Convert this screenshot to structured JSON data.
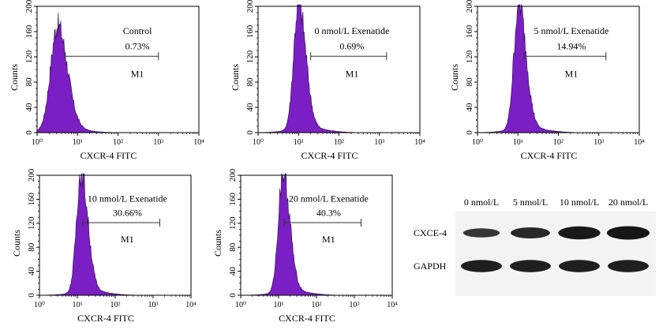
{
  "chart_data": [
    {
      "type": "histogram",
      "panel_label": "Control",
      "percent": "0.73%",
      "gate": "M1",
      "xlabel": "CXCR-4 FITC",
      "ylabel": "Counts",
      "x_scale": "log",
      "xlim": [
        1,
        10000
      ],
      "ylim": [
        0,
        200
      ],
      "x_ticks": [
        "10⁰",
        "10¹",
        "10²",
        "10³",
        "10⁴"
      ],
      "y_ticks": [
        "0",
        "40",
        "80",
        "120",
        "160",
        "200"
      ],
      "gate_range": [
        5,
        1000
      ],
      "peak_x": 3.2,
      "peak_count": 165,
      "fill_color": "#7a1fc4"
    },
    {
      "type": "histogram",
      "panel_label": "0 nmol/L  Exenatide",
      "percent": "0.69%",
      "gate": "M1",
      "xlabel": "CXCR-4 FITC",
      "ylabel": "Counts",
      "x_scale": "log",
      "xlim": [
        1,
        10000
      ],
      "ylim": [
        0,
        200
      ],
      "x_ticks": [
        "10⁰",
        "10¹",
        "10²",
        "10³",
        "10⁴"
      ],
      "y_ticks": [
        "0",
        "40",
        "80",
        "120",
        "160",
        "200"
      ],
      "gate_range": [
        20,
        1500
      ],
      "peak_x": 10,
      "peak_count": 200,
      "fill_color": "#7a1fc4"
    },
    {
      "type": "histogram",
      "panel_label": "5 nmol/L Exenatide",
      "percent": "14.94%",
      "gate": "M1",
      "xlabel": "CXCR-4 FITC",
      "ylabel": "Counts",
      "x_scale": "log",
      "xlim": [
        1,
        10000
      ],
      "ylim": [
        0,
        200
      ],
      "x_ticks": [
        "10⁰",
        "10¹",
        "10²",
        "10³",
        "10⁴"
      ],
      "y_ticks": [
        "0",
        "40",
        "80",
        "120",
        "160",
        "200"
      ],
      "gate_range": [
        14,
        1500
      ],
      "peak_x": 10.5,
      "peak_count": 200,
      "fill_color": "#7a1fc4"
    },
    {
      "type": "histogram",
      "panel_label": "10 nmol/L  Exenatide",
      "percent": "30.66%",
      "gate": "M1",
      "xlabel": "CXCR-4 FITC",
      "ylabel": "Counts",
      "x_scale": "log",
      "xlim": [
        1,
        10000
      ],
      "ylim": [
        0,
        200
      ],
      "x_ticks": [
        "10⁰",
        "10¹",
        "10²",
        "10³",
        "10⁴"
      ],
      "y_ticks": [
        "0",
        "40",
        "80",
        "120",
        "160",
        "200"
      ],
      "gate_range": [
        14,
        1500
      ],
      "peak_x": 12.5,
      "peak_count": 200,
      "fill_color": "#7a1fc4"
    },
    {
      "type": "histogram",
      "panel_label": "20 nmol/L Exenatide",
      "percent": "40.3%",
      "gate": "M1",
      "xlabel": "CXCR-4 FITC",
      "ylabel": "Counts",
      "x_scale": "log",
      "xlim": [
        1,
        10000
      ],
      "ylim": [
        0,
        200
      ],
      "x_ticks": [
        "10⁰",
        "10¹",
        "10²",
        "10³",
        "10⁴"
      ],
      "y_ticks": [
        "0",
        "40",
        "80",
        "120",
        "160",
        "200"
      ],
      "gate_range": [
        14,
        1500
      ],
      "peak_x": 13,
      "peak_count": 200,
      "fill_color": "#7a1fc4"
    }
  ],
  "western_blot": {
    "columns": [
      "0 nmol/L",
      "5 nmol/L",
      "10 nmol/L",
      "20 nmol/L"
    ],
    "rows": [
      {
        "label": "CXCE-4",
        "band_intensity": [
          0.45,
          0.7,
          0.95,
          1.0
        ]
      },
      {
        "label": "GAPDH",
        "band_intensity": [
          0.85,
          0.85,
          0.85,
          0.85
        ]
      }
    ]
  }
}
